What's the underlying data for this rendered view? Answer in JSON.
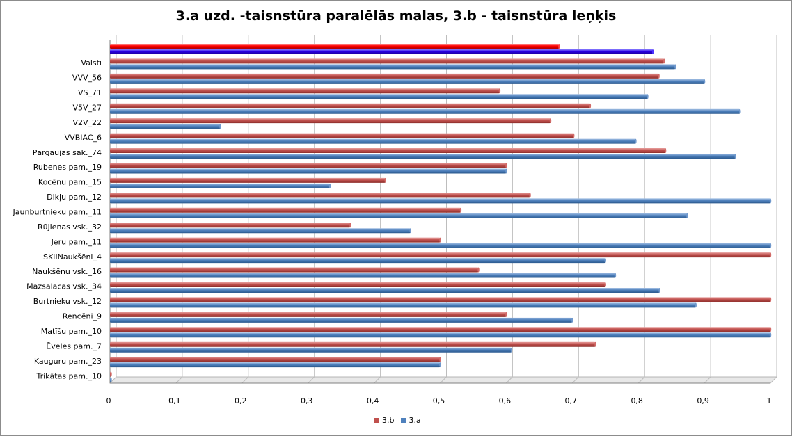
{
  "chart_data": {
    "type": "bar",
    "orientation": "horizontal",
    "title": "3.a uzd. -taisnstūra paralēlās malas, 3.b - taisnstūra leņķis",
    "categories": [
      "Trikātas pam._10",
      "Kauguru pam._23",
      "Ēveles pam._7",
      "Matīšu pam._10",
      "Rencēni_9",
      "Burtnieku vsk._12",
      "Mazsalacas vsk._34",
      "Naukšēnu vsk._16",
      "SKIINaukšēni_4",
      "Jeru pam._11",
      "Rūjienas vsk._32",
      "Jaunburtnieku pam._11",
      "Dikļu pam._12",
      "Kocēnu pam._15",
      "Rubenes pam._19",
      "Pārgaujas sāk._74",
      "VVBIAC_6",
      "V2V_22",
      "V5V_27",
      "VS_71",
      "VVV_56",
      "Valstī",
      ""
    ],
    "series": [
      {
        "name": "3.b",
        "color": "#c0504d",
        "values": [
          0.0,
          0.5,
          0.735,
          1.0,
          0.6,
          1.0,
          0.75,
          0.558,
          1.0,
          0.5,
          0.364,
          0.531,
          0.636,
          0.417,
          0.6,
          0.841,
          0.702,
          0.667,
          0.727,
          0.59,
          0.831,
          0.839,
          0.68
        ]
      },
      {
        "name": "3.a",
        "color": "#4f81bd",
        "values": [
          0.0,
          0.5,
          0.608,
          1.0,
          0.7,
          0.887,
          0.832,
          0.765,
          0.75,
          1.0,
          0.455,
          0.874,
          1.0,
          0.333,
          0.6,
          0.947,
          0.796,
          0.167,
          0.954,
          0.814,
          0.9,
          0.856,
          0.822
        ]
      }
    ],
    "highlight_colors": {
      "3.b": "#ff0000",
      "3.a": "#2a00e6"
    },
    "xlim": [
      0,
      1
    ],
    "xticks": [
      "0",
      "0,1",
      "0,2",
      "0,3",
      "0,4",
      "0,5",
      "0,6",
      "0,7",
      "0,8",
      "0,9",
      "1"
    ],
    "grid": true,
    "legend_position": "bottom"
  }
}
